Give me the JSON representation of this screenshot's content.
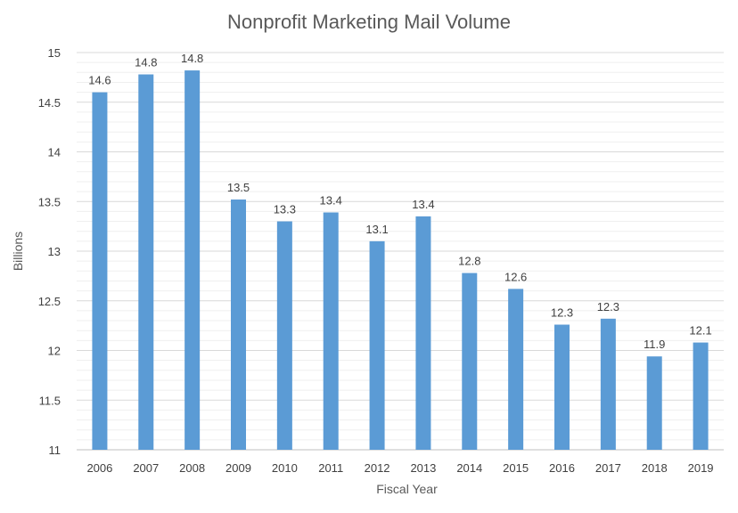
{
  "chart_data": {
    "type": "bar",
    "title": "Nonprofit Marketing Mail Volume",
    "xlabel": "Fiscal Year",
    "ylabel": "Billions",
    "categories": [
      "2006",
      "2007",
      "2008",
      "2009",
      "2010",
      "2011",
      "2012",
      "2013",
      "2014",
      "2015",
      "2016",
      "2017",
      "2018",
      "2019"
    ],
    "values": [
      14.6,
      14.78,
      14.82,
      13.52,
      13.3,
      13.39,
      13.1,
      13.35,
      12.78,
      12.62,
      12.26,
      12.32,
      11.94,
      12.08
    ],
    "data_labels": [
      "14.6",
      "14.8",
      "14.8",
      "13.5",
      "13.3",
      "13.4",
      "13.1",
      "13.4",
      "12.8",
      "12.6",
      "12.3",
      "12.3",
      "11.9",
      "12.1"
    ],
    "ylim": [
      11,
      15
    ],
    "yticks": [
      11,
      11.5,
      12,
      12.5,
      13,
      13.5,
      14,
      14.5,
      15
    ],
    "ytick_labels": [
      "11",
      "11.5",
      "12",
      "12.5",
      "13",
      "13.5",
      "14",
      "14.5",
      "15"
    ],
    "grid": true,
    "legend": "none",
    "colors": {
      "bar": "#5B9BD5",
      "gridline": "#d9d9d9",
      "axis": "#bfbfbf"
    }
  }
}
